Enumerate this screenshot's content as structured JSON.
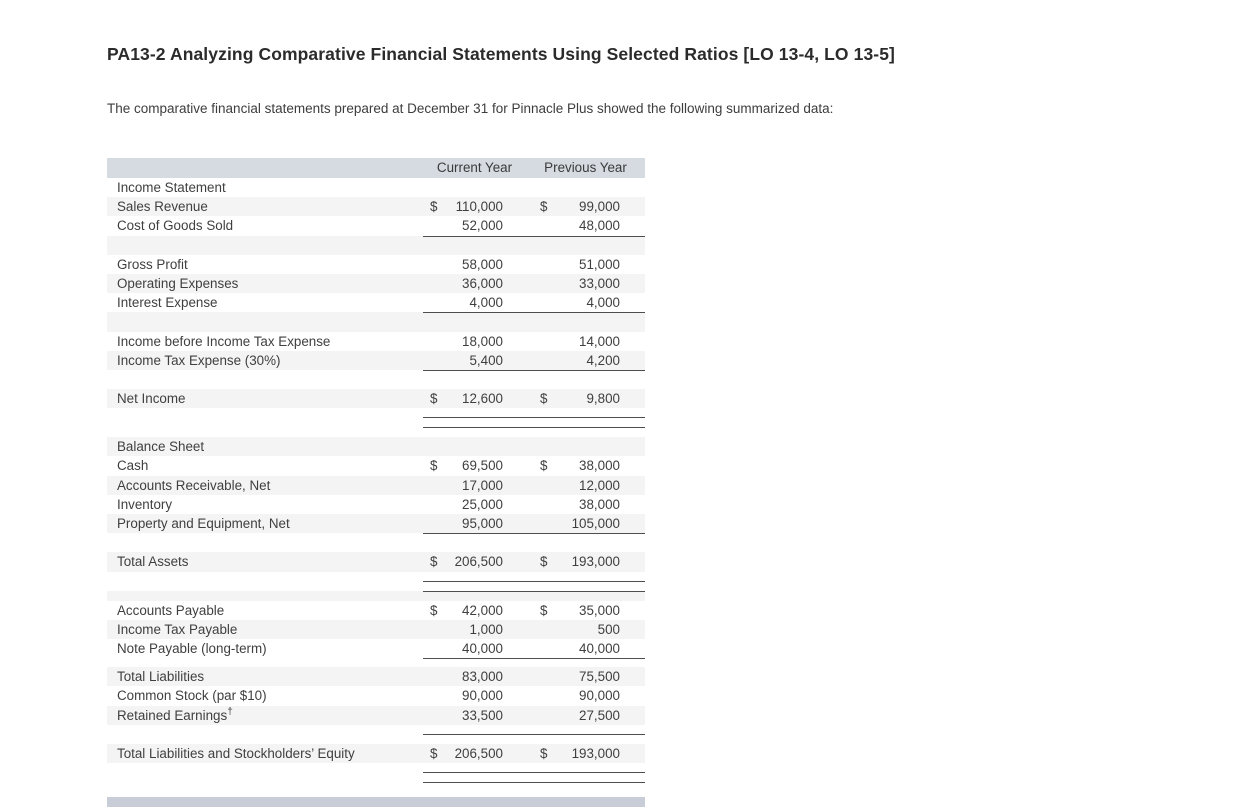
{
  "page": {
    "title": "PA13-2 Analyzing Comparative Financial Statements Using Selected Ratios [LO 13-4, LO 13-5]",
    "intro": "The comparative financial statements prepared at December 31 for Pinnacle Plus showed the following summarized data:"
  },
  "colors": {
    "header_bar": "#d6dae1",
    "footer_bar": "#c8cdd7",
    "row_stripe": "#f4f4f5",
    "rule_line": "#4e4e4e"
  },
  "table": {
    "columns": [
      "Current Year",
      "Previous Year"
    ],
    "rows": [
      {
        "type": "item",
        "bg": "white",
        "label": "Income Statement"
      },
      {
        "type": "item",
        "bg": "gray",
        "label": "Sales Revenue",
        "cy_sym": "$",
        "cy": "110,000",
        "py_sym": "$",
        "py": "99,000"
      },
      {
        "type": "item",
        "bg": "white",
        "label": "Cost of Goods Sold",
        "cy": "52,000",
        "py": "48,000"
      },
      {
        "type": "spacer",
        "bg": "gray",
        "rule": true
      },
      {
        "type": "item",
        "bg": "white",
        "label": "Gross Profit",
        "cy": "58,000",
        "py": "51,000"
      },
      {
        "type": "item",
        "bg": "gray",
        "label": "Operating Expenses",
        "cy": "36,000",
        "py": "33,000"
      },
      {
        "type": "item",
        "bg": "white",
        "label": "Interest Expense",
        "cy": "4,000",
        "py": "4,000"
      },
      {
        "type": "spacer",
        "bg": "gray",
        "rule": true
      },
      {
        "type": "item",
        "bg": "white",
        "label": "Income before Income Tax Expense",
        "cy": "18,000",
        "py": "14,000"
      },
      {
        "type": "item",
        "bg": "gray",
        "label": "Income Tax Expense (30%)",
        "cy": "5,400",
        "py": "4,200"
      },
      {
        "type": "spacer",
        "bg": "white",
        "rule": true
      },
      {
        "type": "item",
        "bg": "gray",
        "label": "Net Income",
        "cy_sym": "$",
        "cy": "12,600",
        "py_sym": "$",
        "py": "9,800"
      },
      {
        "type": "gap",
        "bg": "white"
      },
      {
        "type": "thin",
        "bg": "white",
        "rule": true
      },
      {
        "type": "thin",
        "bg": "white",
        "rule": true
      },
      {
        "type": "item",
        "bg": "gray",
        "label": "Balance Sheet"
      },
      {
        "type": "item",
        "bg": "white",
        "label": "Cash",
        "cy_sym": "$",
        "cy": "69,500",
        "py_sym": "$",
        "py": "38,000"
      },
      {
        "type": "item",
        "bg": "gray",
        "label": "Accounts Receivable, Net",
        "cy": "17,000",
        "py": "12,000"
      },
      {
        "type": "item",
        "bg": "white",
        "label": "Inventory",
        "cy": "25,000",
        "py": "38,000"
      },
      {
        "type": "item",
        "bg": "gray",
        "label": "Property and Equipment, Net",
        "cy": "95,000",
        "py": "105,000"
      },
      {
        "type": "spacer",
        "bg": "white",
        "rule": true
      },
      {
        "type": "item",
        "bg": "gray",
        "label": "Total Assets",
        "cy_sym": "$",
        "cy": "206,500",
        "py_sym": "$",
        "py": "193,000"
      },
      {
        "type": "gap",
        "bg": "white"
      },
      {
        "type": "thin",
        "bg": "white",
        "rule": true
      },
      {
        "type": "thin",
        "bg": "gray",
        "rule": true
      },
      {
        "type": "item",
        "bg": "white",
        "label": "Accounts Payable",
        "cy_sym": "$",
        "cy": "42,000",
        "py_sym": "$",
        "py": "35,000"
      },
      {
        "type": "item",
        "bg": "gray",
        "label": "Income Tax Payable",
        "cy": "1,000",
        "py": "500"
      },
      {
        "type": "item",
        "bg": "white",
        "label": "Note Payable (long-term)",
        "cy": "40,000",
        "py": "40,000"
      },
      {
        "type": "gap",
        "bg": "white",
        "rule": true
      },
      {
        "type": "item",
        "bg": "gray",
        "label": "Total Liabilities",
        "cy": "83,000",
        "py": "75,500"
      },
      {
        "type": "item",
        "bg": "white",
        "label": "Common Stock (par $10)",
        "cy": "90,000",
        "py": "90,000"
      },
      {
        "type": "item",
        "bg": "gray",
        "label": "Retained Earnings",
        "sup": "†",
        "cy": "33,500",
        "py": "27,500"
      },
      {
        "type": "gap",
        "bg": "white"
      },
      {
        "type": "thin",
        "bg": "white",
        "rule": true
      },
      {
        "type": "item",
        "bg": "gray",
        "label": "Total Liabilities and Stockholders’ Equity",
        "cy_sym": "$",
        "cy": "206,500",
        "py_sym": "$",
        "py": "193,000"
      },
      {
        "type": "gap",
        "bg": "white"
      },
      {
        "type": "thin",
        "bg": "white",
        "rule": true
      },
      {
        "type": "thin",
        "bg": "white",
        "rule": true
      }
    ]
  }
}
